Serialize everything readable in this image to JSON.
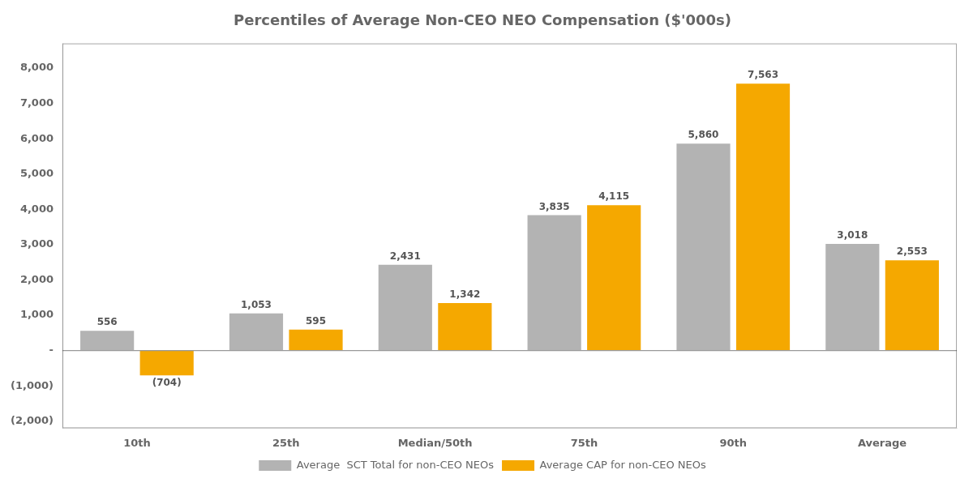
{
  "chart_data": {
    "type": "bar",
    "title": "Percentiles of Average Non-CEO NEO Compensation ($'000s)",
    "categories": [
      "10th",
      "25th",
      "Median/50th",
      "75th",
      "90th",
      "Average"
    ],
    "series": [
      {
        "name": "Average  SCT Total for non-CEO NEOs",
        "color": "#b3b3b3",
        "values": [
          556,
          1053,
          2431,
          3835,
          5860,
          3018
        ],
        "value_labels": [
          "556",
          "1,053",
          "2,431",
          "3,835",
          "5,860",
          "3,018"
        ]
      },
      {
        "name": "Average CAP for non-CEO NEOs",
        "color": "#f5a800",
        "values": [
          -704,
          595,
          1342,
          4115,
          7563,
          2553
        ],
        "value_labels": [
          "(704)",
          "595",
          "1,342",
          "4,115",
          "7,563",
          "2,553"
        ]
      }
    ],
    "ylim": [
      -2200,
      8700
    ],
    "yticks": [
      {
        "value": -2000,
        "label": "(2,000)"
      },
      {
        "value": -1000,
        "label": "(1,000)"
      },
      {
        "value": 0,
        "label": "-"
      },
      {
        "value": 1000,
        "label": "1,000"
      },
      {
        "value": 2000,
        "label": "2,000"
      },
      {
        "value": 3000,
        "label": "3,000"
      },
      {
        "value": 4000,
        "label": "4,000"
      },
      {
        "value": 5000,
        "label": "5,000"
      },
      {
        "value": 6000,
        "label": "6,000"
      },
      {
        "value": 7000,
        "label": "7,000"
      },
      {
        "value": 8000,
        "label": "8,000"
      }
    ],
    "grid": false,
    "legend": "bottom",
    "data_labels": true
  }
}
